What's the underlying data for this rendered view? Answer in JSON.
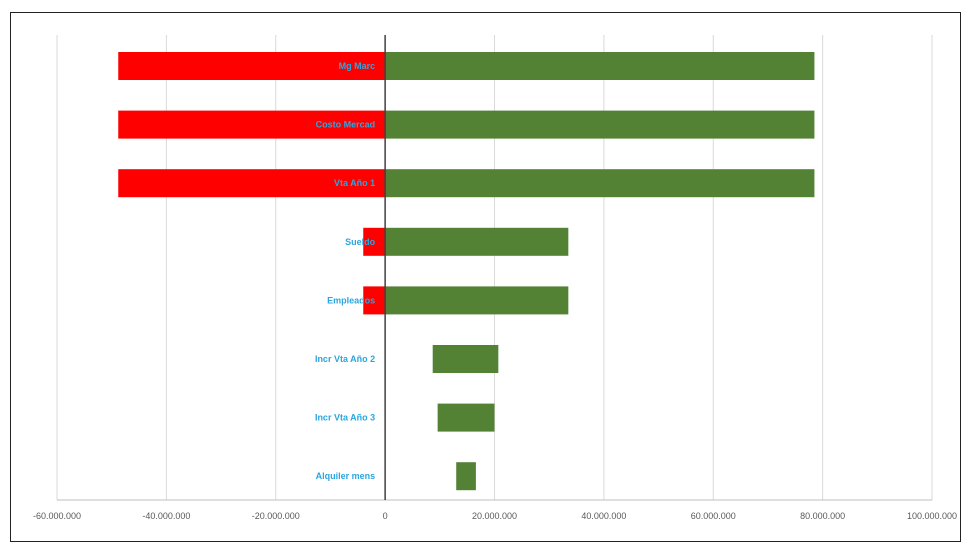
{
  "chart_data": {
    "type": "bar",
    "orientation": "horizontal",
    "subtype": "tornado",
    "title": "",
    "xlabel": "",
    "ylabel": "",
    "xlim": [
      -60000000,
      100000000
    ],
    "x_ticks": [
      -60000000,
      -40000000,
      -20000000,
      0,
      20000000,
      40000000,
      60000000,
      80000000,
      100000000
    ],
    "x_tick_labels": [
      "-60.000.000",
      "-40.000.000",
      "-20.000.000",
      "0",
      "20.000.000",
      "40.000.000",
      "60.000.000",
      "80.000.000",
      "100.000.000"
    ],
    "grid": "vertical",
    "legend": "none",
    "categories": [
      "Mg Marc",
      "Costo Mercad",
      "Vta Año 1",
      "Sueldo",
      "Empleados",
      "Incr Vta Año 2",
      "Incr Vta Año 3",
      "Alquiler mens"
    ],
    "series": [
      {
        "color": "#ff0000",
        "low": [
          -48800000,
          -48800000,
          -48800000,
          -4000000,
          -4000000,
          null,
          null,
          null
        ],
        "high": [
          0,
          0,
          0,
          0,
          0,
          null,
          null,
          null
        ]
      },
      {
        "color": "#548235",
        "low": [
          0,
          0,
          0,
          0,
          0,
          8700000,
          9600000,
          13000000
        ],
        "high": [
          78500000,
          78500000,
          78500000,
          33500000,
          33500000,
          20700000,
          20000000,
          16600000
        ]
      }
    ],
    "colors": {
      "negative": "#ff0000",
      "positive": "#548235",
      "category_label": "#2aa6e0",
      "tick_label": "#595959",
      "gridline": "#d9d9d9",
      "zero_axis": "#404040"
    }
  }
}
